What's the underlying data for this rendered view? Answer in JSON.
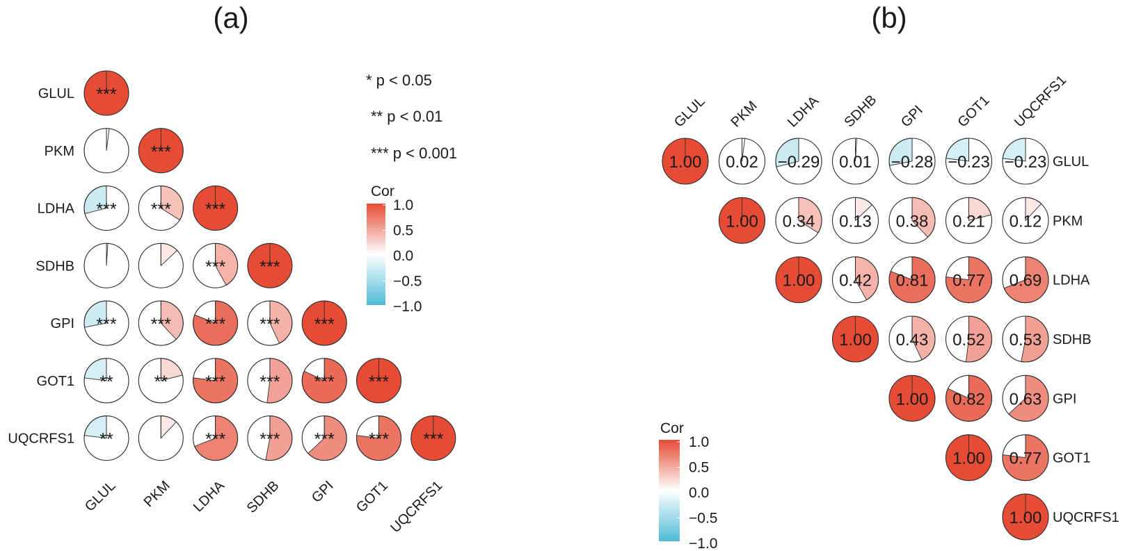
{
  "panels": [
    {
      "label": "(a)"
    },
    {
      "label": "(b)"
    }
  ],
  "significance_legend": [
    "* p < 0.05",
    "** p < 0.01",
    "*** p < 0.001"
  ],
  "colors": {
    "negative": "#4DBBD5",
    "zero": "#FFFFFF",
    "positive": "#E64B35",
    "outline": "#2b2b2b"
  },
  "chart_data": [
    {
      "type": "heatmap",
      "panel": "(a)",
      "style": "pie correlogram, lower triangle, significance stars",
      "genes": [
        "GLUL",
        "PKM",
        "LDHA",
        "SDHB",
        "GPI",
        "GOT1",
        "UQCRFS1"
      ],
      "matrix": [
        [
          1.0,
          0.02,
          -0.29,
          0.01,
          -0.28,
          -0.23,
          -0.23
        ],
        [
          0.02,
          1.0,
          0.34,
          0.13,
          0.38,
          0.21,
          0.12
        ],
        [
          -0.29,
          0.34,
          1.0,
          0.42,
          0.81,
          0.77,
          0.69
        ],
        [
          0.01,
          0.13,
          0.42,
          1.0,
          0.43,
          0.52,
          0.53
        ],
        [
          -0.28,
          0.38,
          0.81,
          0.43,
          1.0,
          0.82,
          0.63
        ],
        [
          -0.23,
          0.21,
          0.77,
          0.52,
          0.82,
          1.0,
          0.77
        ],
        [
          -0.23,
          0.12,
          0.69,
          0.53,
          0.63,
          0.77,
          1.0
        ]
      ],
      "stars": [
        [
          "***",
          "",
          "",
          "",
          "",
          "",
          ""
        ],
        [
          "",
          "***",
          "",
          "",
          "",
          "",
          ""
        ],
        [
          "***",
          "***",
          "***",
          "",
          "",
          "",
          ""
        ],
        [
          "",
          "",
          "***",
          "***",
          "",
          "",
          ""
        ],
        [
          "***",
          "***",
          "***",
          "***",
          "***",
          "",
          ""
        ],
        [
          "**",
          "**",
          "***",
          "***",
          "***",
          "***",
          ""
        ],
        [
          "**",
          "",
          "***",
          "***",
          "***",
          "***",
          "***"
        ]
      ],
      "legend": {
        "title": "Cor",
        "ticks": [
          "1.0",
          "0.5",
          "0.0",
          "−0.5",
          "−1.0"
        ],
        "range": [
          -1,
          1
        ]
      }
    },
    {
      "type": "heatmap",
      "panel": "(b)",
      "style": "pie correlogram, upper triangle, coefficient labels",
      "genes": [
        "GLUL",
        "PKM",
        "LDHA",
        "SDHB",
        "GPI",
        "GOT1",
        "UQCRFS1"
      ],
      "matrix": [
        [
          1.0,
          0.02,
          -0.29,
          0.01,
          -0.28,
          -0.23,
          -0.23
        ],
        [
          0.02,
          1.0,
          0.34,
          0.13,
          0.38,
          0.21,
          0.12
        ],
        [
          -0.29,
          0.34,
          1.0,
          0.42,
          0.81,
          0.77,
          0.69
        ],
        [
          0.01,
          0.13,
          0.42,
          1.0,
          0.43,
          0.52,
          0.53
        ],
        [
          -0.28,
          0.38,
          0.81,
          0.43,
          1.0,
          0.82,
          0.63
        ],
        [
          -0.23,
          0.21,
          0.77,
          0.52,
          0.82,
          1.0,
          0.77
        ],
        [
          -0.23,
          0.12,
          0.69,
          0.53,
          0.63,
          0.77,
          1.0
        ]
      ],
      "value_labels": [
        [
          "1.00",
          "0.02",
          "−0.29",
          "0.01",
          "−0.28",
          "−0.23",
          "−0.23"
        ],
        [
          "",
          "1.00",
          "0.34",
          "0.13",
          "0.38",
          "0.21",
          "0.12"
        ],
        [
          "",
          "",
          "1.00",
          "0.42",
          "0.81",
          "0.77",
          "0.69"
        ],
        [
          "",
          "",
          "",
          "1.00",
          "0.43",
          "0.52",
          "0.53"
        ],
        [
          "",
          "",
          "",
          "",
          "1.00",
          "0.82",
          "0.63"
        ],
        [
          "",
          "",
          "",
          "",
          "",
          "1.00",
          "0.77"
        ],
        [
          "",
          "",
          "",
          "",
          "",
          "",
          "1.00"
        ]
      ],
      "legend": {
        "title": "Cor",
        "ticks": [
          "1.0",
          "0.5",
          "0.0",
          "−0.5",
          "−1.0"
        ],
        "range": [
          -1,
          1
        ]
      }
    }
  ]
}
